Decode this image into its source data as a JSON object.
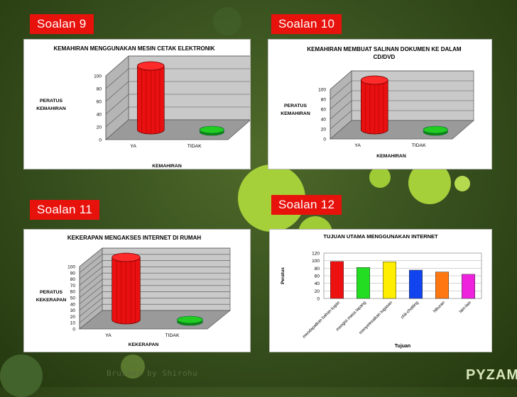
{
  "page": {
    "credit": "Brushes by Shirohu",
    "brand": "PYZAM"
  },
  "colors": {
    "label_bg": "#e8120c",
    "bar_red": "#e81010",
    "bar_green": "#22cc22"
  },
  "labels": [
    "Soalan 9",
    "Soalan 10",
    "Soalan 11",
    "Soalan 12"
  ],
  "chart_data": [
    {
      "type": "bar",
      "title": "KEMAHIRAN MENGGUNAKAN MESIN CETAK ELEKTRONIK",
      "xlabel": "KEMAHIRAN",
      "ylabel": "PERATUS KEMAHIRAN",
      "categories": [
        "YA",
        "TIDAK"
      ],
      "values": [
        100,
        0
      ],
      "ylim": [
        0,
        100
      ],
      "yticks": [
        0,
        20,
        40,
        60,
        80,
        100
      ],
      "grid": true
    },
    {
      "type": "bar",
      "title": "KEMAHIRAN MEMBUAT SALINAN DOKUMEN KE DALAM CD/DVD",
      "xlabel": "KEMAHIRAN",
      "ylabel": "PERATUS KEMAHIRAN",
      "categories": [
        "YA",
        "TIDAK"
      ],
      "values": [
        100,
        0
      ],
      "ylim": [
        0,
        100
      ],
      "yticks": [
        0,
        20,
        40,
        60,
        80,
        100
      ],
      "grid": true
    },
    {
      "type": "bar",
      "title": "KEKERAPAN MENGAKSES INTERNET DI RUMAH",
      "xlabel": "KEKERAPAN",
      "ylabel": "PERATUS KEKERAPAN",
      "categories": [
        "YA",
        "TIDAK"
      ],
      "values": [
        100,
        0
      ],
      "ylim": [
        0,
        100
      ],
      "yticks": [
        0,
        10,
        20,
        30,
        40,
        50,
        60,
        70,
        80,
        90,
        100
      ],
      "grid": true
    },
    {
      "type": "bar",
      "title": "TUJUAN UTAMA MENGGUNAKAN INTERNET",
      "xlabel": "Tujuan",
      "ylabel": "Peratus",
      "categories": [
        "mendapatkan bahan tugas",
        "mengisi masa lapang",
        "menyelesaikan tugasan",
        "chit-chatting",
        "hiburan",
        "lain-lain"
      ],
      "values": [
        98,
        82,
        97,
        75,
        70,
        64
      ],
      "colors": [
        "#ee1111",
        "#22dd22",
        "#ffee00",
        "#1144ee",
        "#ff7711",
        "#ee22dd"
      ],
      "ylim": [
        0,
        120
      ],
      "yticks": [
        0,
        20,
        40,
        60,
        80,
        100,
        120
      ],
      "grid": true
    }
  ]
}
